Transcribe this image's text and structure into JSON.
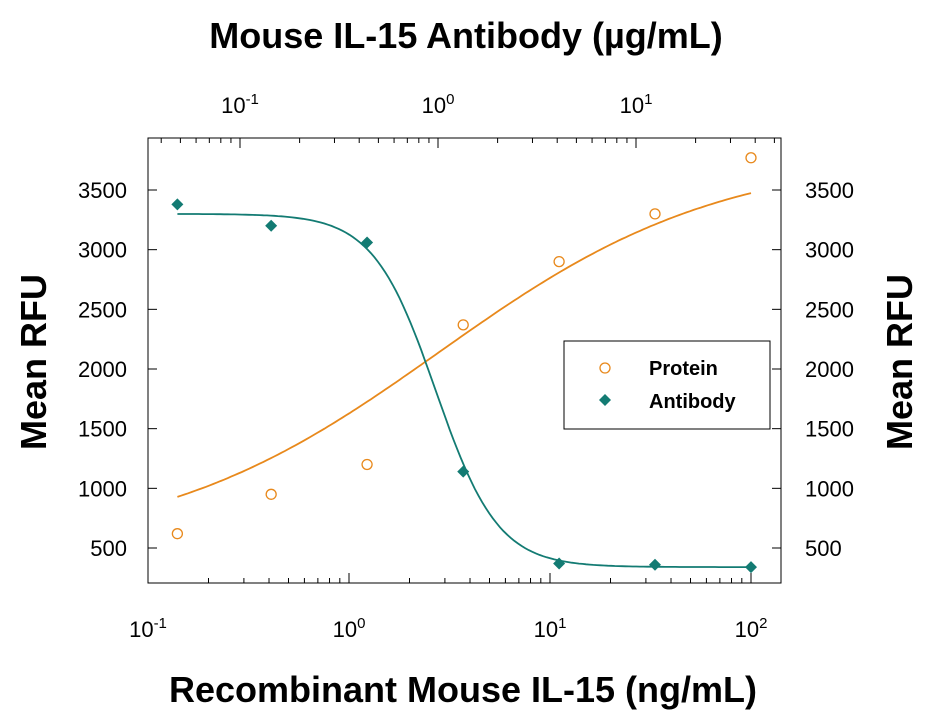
{
  "chart_data": {
    "type": "scatter",
    "title": "Mouse IL-15 Antibody (µg/mL)",
    "xlabel": "Recombinant Mouse IL-15 (ng/mL)",
    "ylabel": "Mean RFU",
    "y2label": "Mean RFU",
    "x_scale": "log",
    "xlim": [
      0.1,
      130
    ],
    "ylim": [
      300,
      3850
    ],
    "yticks": [
      "500",
      "1000",
      "1500",
      "2000",
      "2500",
      "3000",
      "3500"
    ],
    "xticks": [
      {
        "base": "10",
        "exp": "-1"
      },
      {
        "base": "10",
        "exp": "0"
      },
      {
        "base": "10",
        "exp": "1"
      },
      {
        "base": "10",
        "exp": "2"
      }
    ],
    "top_xticks": [
      {
        "base": "10",
        "exp": "-1"
      },
      {
        "base": "10",
        "exp": "0"
      },
      {
        "base": "10",
        "exp": "1"
      }
    ],
    "legend_position": "right-middle",
    "grid": false,
    "series": [
      {
        "name": "Protein",
        "marker": "open-circle",
        "color": "#e8891c",
        "x": [
          0.14,
          0.41,
          1.23,
          3.7,
          11.1,
          33.3,
          100
        ],
        "y": [
          620,
          950,
          1200,
          2370,
          2900,
          3300,
          3770
        ],
        "fit": {
          "bottom": 480,
          "top": 3800,
          "ec50": 2.8,
          "hill": 0.62
        }
      },
      {
        "name": "Antibody",
        "marker": "diamond",
        "color": "#137b73",
        "x": [
          0.14,
          0.41,
          1.23,
          3.7,
          11.1,
          33.3,
          100
        ],
        "y": [
          3380,
          3200,
          3060,
          1140,
          370,
          360,
          340
        ],
        "fit": {
          "bottom": 340,
          "top": 3300,
          "ec50": 2.7,
          "hill": 2.8
        }
      }
    ]
  }
}
